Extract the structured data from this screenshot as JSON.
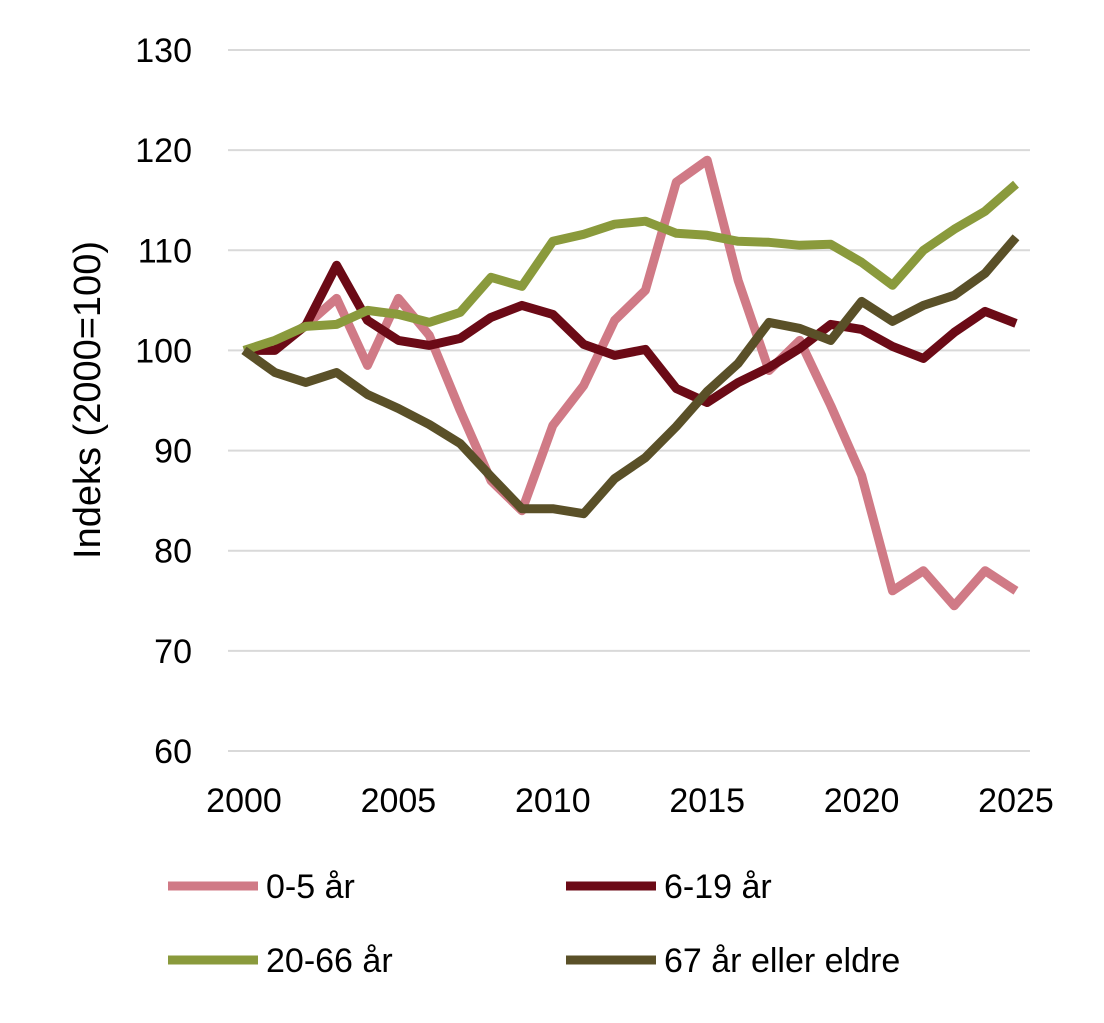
{
  "chart_data": {
    "type": "line",
    "ylabel": "Indeks (2000=100)",
    "xlabel": "",
    "title": "",
    "ylim": [
      60,
      130
    ],
    "y_ticks": [
      60,
      70,
      80,
      90,
      100,
      110,
      120,
      130
    ],
    "xlim": [
      2000,
      2025
    ],
    "x_ticks": [
      2000,
      2005,
      2010,
      2015,
      2020,
      2025
    ],
    "grid": "horizontal",
    "legend_position": "bottom",
    "x": [
      2000,
      2001,
      2002,
      2003,
      2004,
      2005,
      2006,
      2007,
      2008,
      2009,
      2010,
      2011,
      2012,
      2013,
      2014,
      2015,
      2016,
      2017,
      2018,
      2019,
      2020,
      2021,
      2022,
      2023,
      2024,
      2025
    ],
    "series": [
      {
        "name": "0-5 år",
        "color": "#d07a86",
        "values": [
          100,
          100.5,
          102.5,
          105.2,
          98.5,
          105.2,
          101.5,
          94,
          87,
          84,
          92.5,
          96.5,
          103,
          106,
          116.8,
          119,
          107,
          98,
          101,
          94.5,
          87.5,
          76,
          78,
          74.5,
          78,
          76
        ]
      },
      {
        "name": "6-19 år",
        "color": "#6b0a16",
        "values": [
          100,
          100,
          102.5,
          108.5,
          103,
          101,
          100.5,
          101.2,
          103.3,
          104.5,
          103.6,
          100.6,
          99.5,
          100.1,
          96.2,
          94.8,
          96.8,
          98.3,
          100.2,
          102.6,
          102.1,
          100.4,
          99.2,
          101.8,
          103.9,
          102.7
        ]
      },
      {
        "name": "20-66 år",
        "color": "#8a9a3c",
        "values": [
          100,
          101,
          102.4,
          102.6,
          104,
          103.6,
          102.8,
          103.8,
          107.3,
          106.4,
          110.9,
          111.6,
          112.6,
          112.9,
          111.7,
          111.5,
          110.9,
          110.8,
          110.5,
          110.6,
          108.8,
          106.5,
          110,
          112.1,
          113.9,
          116.6
        ]
      },
      {
        "name": "67 år eller eldre",
        "color": "#5a5028",
        "values": [
          100,
          97.8,
          96.8,
          97.8,
          95.6,
          94.2,
          92.6,
          90.7,
          87.4,
          84.2,
          84.2,
          83.7,
          87.2,
          89.3,
          92.4,
          95.9,
          98.7,
          102.8,
          102.2,
          101,
          104.9,
          102.9,
          104.5,
          105.5,
          107.7,
          111.3
        ]
      }
    ]
  }
}
